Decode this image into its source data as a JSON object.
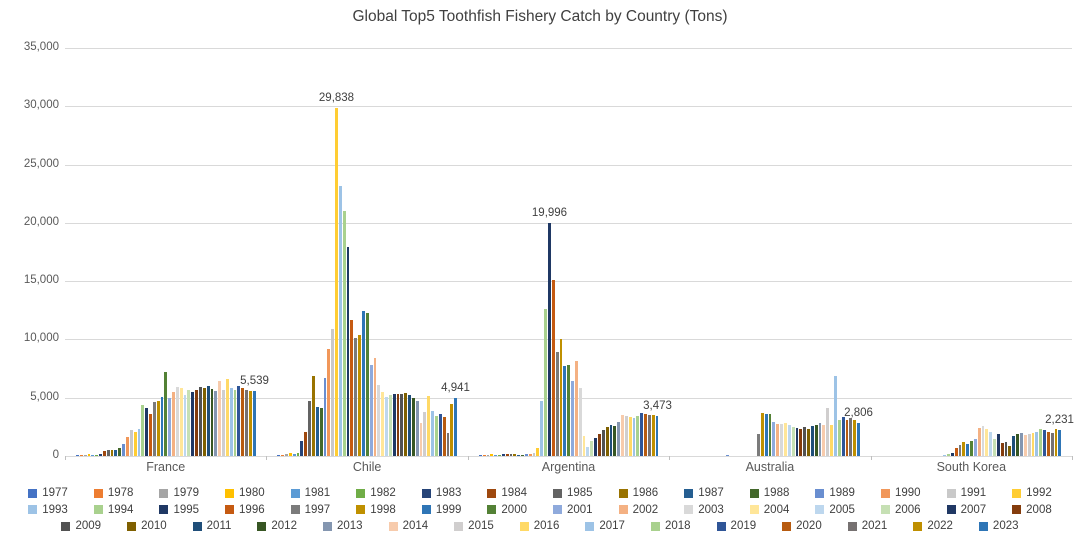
{
  "title": "Global Top5 Toothfish Fishery Catch by Country (Tons)",
  "colors": {
    "background": "#FFFFFF",
    "grid": "#D9D9D9",
    "axis_text": "#595959",
    "title_text": "#404040",
    "data_label_text": "#404040"
  },
  "chart_data": {
    "type": "bar",
    "title": "Global Top5 Toothfish Fishery Catch by Country (Tons)",
    "xlabel": "",
    "ylabel": "",
    "ylim": [
      0,
      35000
    ],
    "y_tick_step": 5000,
    "y_ticks": [
      "35,000",
      "30,000",
      "25,000",
      "20,000",
      "15,000",
      "10,000",
      "5,000",
      "0"
    ],
    "grid": true,
    "legend_position": "bottom",
    "legend_rows": [
      [
        0,
        16
      ],
      [
        16,
        32
      ],
      [
        32,
        47
      ]
    ],
    "categories": [
      "France",
      "Chile",
      "Argentina",
      "Australia",
      "South Korea"
    ],
    "series": [
      {
        "name": "1977",
        "color": "#4472C4",
        "values": [
          100,
          80,
          50,
          0,
          0
        ]
      },
      {
        "name": "1978",
        "color": "#ED7D31",
        "values": [
          80,
          120,
          80,
          0,
          0
        ]
      },
      {
        "name": "1979",
        "color": "#A5A5A5",
        "values": [
          100,
          150,
          100,
          0,
          0
        ]
      },
      {
        "name": "1980",
        "color": "#FFC000",
        "values": [
          150,
          250,
          150,
          0,
          0
        ]
      },
      {
        "name": "1981",
        "color": "#5B9BD5",
        "values": [
          120,
          200,
          120,
          0,
          0
        ]
      },
      {
        "name": "1982",
        "color": "#70AD47",
        "values": [
          100,
          300,
          100,
          0,
          0
        ]
      },
      {
        "name": "1983",
        "color": "#264478",
        "values": [
          200,
          1250,
          150,
          0,
          0
        ]
      },
      {
        "name": "1984",
        "color": "#9E480E",
        "values": [
          400,
          2100,
          200,
          0,
          0
        ]
      },
      {
        "name": "1985",
        "color": "#636363",
        "values": [
          500,
          4750,
          150,
          0,
          0
        ]
      },
      {
        "name": "1986",
        "color": "#997300",
        "values": [
          550,
          6900,
          150,
          0,
          0
        ]
      },
      {
        "name": "1987",
        "color": "#255E91",
        "values": [
          500,
          4200,
          100,
          0,
          0
        ]
      },
      {
        "name": "1988",
        "color": "#43682B",
        "values": [
          700,
          4100,
          100,
          0,
          0
        ]
      },
      {
        "name": "1989",
        "color": "#698ED0",
        "values": [
          1000,
          6700,
          150,
          50,
          0
        ]
      },
      {
        "name": "1990",
        "color": "#F1975A",
        "values": [
          1650,
          9200,
          200,
          0,
          0
        ]
      },
      {
        "name": "1991",
        "color": "#C9C9C9",
        "values": [
          2200,
          10900,
          250,
          0,
          0
        ]
      },
      {
        "name": "1992",
        "color": "#FFCD33",
        "values": [
          2100,
          29838,
          700,
          0,
          0
        ]
      },
      {
        "name": "1993",
        "color": "#9DC3E6",
        "values": [
          2300,
          23200,
          4740,
          0,
          100
        ]
      },
      {
        "name": "1994",
        "color": "#A9D18E",
        "values": [
          4400,
          21000,
          12640,
          0,
          150
        ]
      },
      {
        "name": "1995",
        "color": "#1F3864",
        "values": [
          4100,
          17900,
          19996,
          0,
          250
        ]
      },
      {
        "name": "1996",
        "color": "#C55A11",
        "values": [
          3600,
          11700,
          15090,
          0,
          730
        ]
      },
      {
        "name": "1997",
        "color": "#7B7B7B",
        "values": [
          4600,
          10100,
          8900,
          1850,
          940
        ]
      },
      {
        "name": "1998",
        "color": "#BF9000",
        "values": [
          4700,
          10400,
          10000,
          3700,
          1200
        ]
      },
      {
        "name": "1999",
        "color": "#2E75B6",
        "values": [
          5100,
          12400,
          7700,
          3600,
          1050
        ]
      },
      {
        "name": "2000",
        "color": "#538135",
        "values": [
          7180,
          12300,
          7840,
          3600,
          1300
        ]
      },
      {
        "name": "2001",
        "color": "#8FAADC",
        "values": [
          5000,
          7790,
          6470,
          2900,
          1500
        ]
      },
      {
        "name": "2002",
        "color": "#F4B183",
        "values": [
          5500,
          8400,
          8190,
          2750,
          2400
        ]
      },
      {
        "name": "2003",
        "color": "#D9D9D9",
        "values": [
          5900,
          6100,
          5800,
          2750,
          2550
        ]
      },
      {
        "name": "2004",
        "color": "#FFE699",
        "values": [
          5830,
          5500,
          1700,
          2800,
          2300
        ]
      },
      {
        "name": "2005",
        "color": "#BDD7EE",
        "values": [
          5260,
          5100,
          800,
          2700,
          2100
        ]
      },
      {
        "name": "2006",
        "color": "#C6E0B4",
        "values": [
          5630,
          5200,
          1250,
          2500,
          1500
        ]
      },
      {
        "name": "2007",
        "color": "#203864",
        "values": [
          5460,
          5300,
          1550,
          2400,
          1900
        ]
      },
      {
        "name": "2008",
        "color": "#843C0C",
        "values": [
          5690,
          5300,
          1900,
          2350,
          1100
        ]
      },
      {
        "name": "2009",
        "color": "#525252",
        "values": [
          5920,
          5300,
          2200,
          2450,
          1200
        ]
      },
      {
        "name": "2010",
        "color": "#7F6000",
        "values": [
          5830,
          5400,
          2500,
          2350,
          900
        ]
      },
      {
        "name": "2011",
        "color": "#1F4E79",
        "values": [
          6030,
          5200,
          2700,
          2600,
          1700
        ]
      },
      {
        "name": "2012",
        "color": "#375623",
        "values": [
          5750,
          5000,
          2550,
          2700,
          1900
        ]
      },
      {
        "name": "2013",
        "color": "#8496B0",
        "values": [
          5550,
          4700,
          2950,
          2800,
          2000
        ]
      },
      {
        "name": "2014",
        "color": "#F7CBAC",
        "values": [
          6410,
          2800,
          3500,
          2700,
          1800
        ]
      },
      {
        "name": "2015",
        "color": "#D0CECE",
        "values": [
          5630,
          3800,
          3400,
          4150,
          1900
        ]
      },
      {
        "name": "2016",
        "color": "#FFD966",
        "values": [
          6610,
          5170,
          3350,
          2700,
          2000
        ]
      },
      {
        "name": "2017",
        "color": "#9DC3E6",
        "values": [
          5830,
          3870,
          3300,
          6900,
          2100
        ]
      },
      {
        "name": "2018",
        "color": "#A9D18E",
        "values": [
          5690,
          3430,
          3400,
          3100,
          2300
        ]
      },
      {
        "name": "2019",
        "color": "#2F5597",
        "values": [
          6030,
          3580,
          3700,
          3350,
          2200
        ]
      },
      {
        "name": "2020",
        "color": "#B75B10",
        "values": [
          5830,
          3370,
          3600,
          3050,
          2100
        ]
      },
      {
        "name": "2021",
        "color": "#767171",
        "values": [
          5690,
          1980,
          3550,
          3250,
          2000
        ]
      },
      {
        "name": "2022",
        "color": "#BF8F00",
        "values": [
          5550,
          4450,
          3500,
          3100,
          2300
        ]
      },
      {
        "name": "2023",
        "color": "#2E75B6",
        "values": [
          5539,
          4941,
          3473,
          2806,
          2231
        ]
      }
    ],
    "annotations": [
      {
        "category": "Chile",
        "series": "1992",
        "label": "29,838"
      },
      {
        "category": "Argentina",
        "series": "1995",
        "label": "19,996"
      },
      {
        "category": "France",
        "series": "2023",
        "label": "5,539"
      },
      {
        "category": "Chile",
        "series": "2023",
        "label": "4,941"
      },
      {
        "category": "Argentina",
        "series": "2023",
        "label": "3,473"
      },
      {
        "category": "Australia",
        "series": "2023",
        "label": "2,806"
      },
      {
        "category": "South Korea",
        "series": "2023",
        "label": "2,231"
      }
    ]
  }
}
